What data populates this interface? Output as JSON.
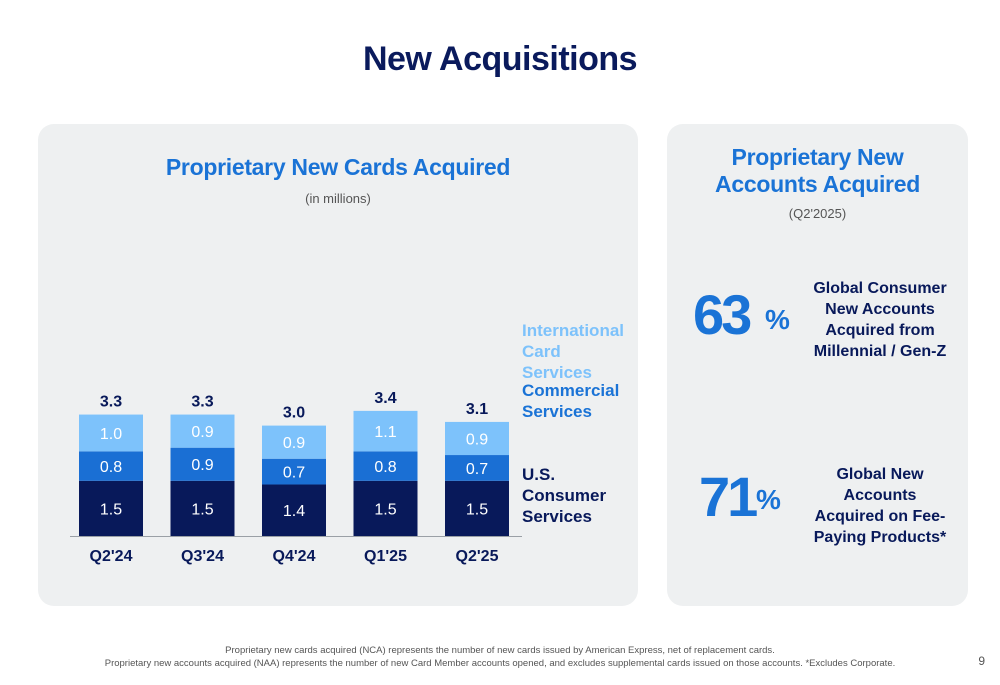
{
  "title": "New Acquisitions",
  "left": {
    "title": "Proprietary New Cards Acquired",
    "subtitle": "(in millions)"
  },
  "chart_data": {
    "type": "bar",
    "stacked": true,
    "title": "Proprietary New Cards Acquired",
    "subtitle": "(in millions)",
    "categories": [
      "Q2'24",
      "Q3'24",
      "Q4'24",
      "Q1'25",
      "Q2'25"
    ],
    "totals": [
      "3.3",
      "3.3",
      "3.0",
      "3.4",
      "3.1"
    ],
    "series": [
      {
        "name": "U.S. Consumer Services",
        "values": [
          1.5,
          1.5,
          1.4,
          1.5,
          1.5
        ],
        "labels": [
          "1.5",
          "1.5",
          "1.4",
          "1.5",
          "1.5"
        ],
        "color": "#08195a"
      },
      {
        "name": "Commercial Services",
        "values": [
          0.8,
          0.9,
          0.7,
          0.8,
          0.7
        ],
        "labels": [
          "0.8",
          "0.9",
          "0.7",
          "0.8",
          "0.7"
        ],
        "color": "#1a6fd4"
      },
      {
        "name": "International Card Services",
        "values": [
          1.0,
          0.9,
          0.9,
          1.1,
          0.9
        ],
        "labels": [
          "1.0",
          "0.9",
          "0.9",
          "1.1",
          "0.9"
        ],
        "color": "#7dc2fb"
      }
    ],
    "legend_position": "right",
    "grid": false
  },
  "legend": {
    "intl": "International Card Services",
    "comm": "Commercial Services",
    "us": "U.S. Consumer Services"
  },
  "right": {
    "title_line1": "Proprietary New",
    "title_line2": "Accounts Acquired",
    "subtitle": "(Q2'2025)",
    "stat1": {
      "value": "63",
      "unit": "%",
      "desc_lines": [
        "Global Consumer",
        "New Accounts",
        "Acquired from",
        "Millennial / Gen-Z"
      ]
    },
    "stat2": {
      "value": "71",
      "unit": "%",
      "desc_lines": [
        "Global New Accounts",
        "Acquired on Fee-",
        "Paying Products*"
      ]
    }
  },
  "footnotes": {
    "line1": "Proprietary new cards acquired (NCA) represents the number of new cards issued by American Express, net of replacement cards.",
    "line2": "Proprietary new accounts acquired (NAA) represents the number of new Card Member accounts opened, and excludes supplemental cards issued on those accounts. *Excludes Corporate."
  },
  "page_number": "9",
  "colors": {
    "navy": "#08195a",
    "accent_blue": "#1a73d6",
    "light_blue": "#7dc2fb",
    "panel_bg": "#eef0f1"
  }
}
